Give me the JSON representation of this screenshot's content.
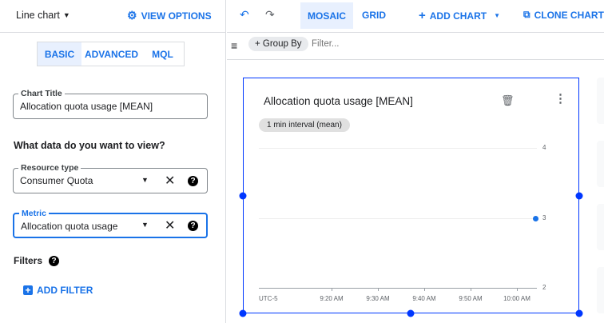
{
  "left": {
    "chart_type": "Line chart",
    "view_options": "VIEW OPTIONS",
    "tabs": [
      {
        "label": "BASIC",
        "active": true
      },
      {
        "label": "ADVANCED",
        "active": false
      },
      {
        "label": "MQL",
        "active": false
      }
    ],
    "chart_title": {
      "label": "Chart Title",
      "value": "Allocation quota usage [MEAN]"
    },
    "question": "What data do you want to view?",
    "resource_type": {
      "label": "Resource type",
      "value": "Consumer Quota"
    },
    "metric": {
      "label": "Metric",
      "value": "Allocation quota usage"
    },
    "filters_label": "Filters",
    "add_filter": "ADD FILTER"
  },
  "toolbar": {
    "mosaic": "MOSAIC",
    "grid": "GRID",
    "add_chart": "ADD CHART",
    "clone_chart": "CLONE CHART",
    "group_by": "+ Group By",
    "filter_placeholder": "Filter..."
  },
  "colors": {
    "accent": "#1a73e8",
    "selection": "#0037ff",
    "series": "#1a73e8"
  },
  "chart_data": {
    "type": "scatter",
    "title": "Allocation quota usage [MEAN]",
    "chip": "1 min interval (mean)",
    "timezone_label": "UTC-5",
    "x_ticks": [
      "9:20 AM",
      "9:30 AM",
      "9:40 AM",
      "9:50 AM",
      "10:00 AM"
    ],
    "y_ticks": [
      4,
      3,
      2
    ],
    "ylim": [
      2,
      4
    ],
    "grid": true,
    "series": [
      {
        "points": [
          {
            "x": "10:04 AM",
            "y": 3
          }
        ]
      }
    ]
  }
}
